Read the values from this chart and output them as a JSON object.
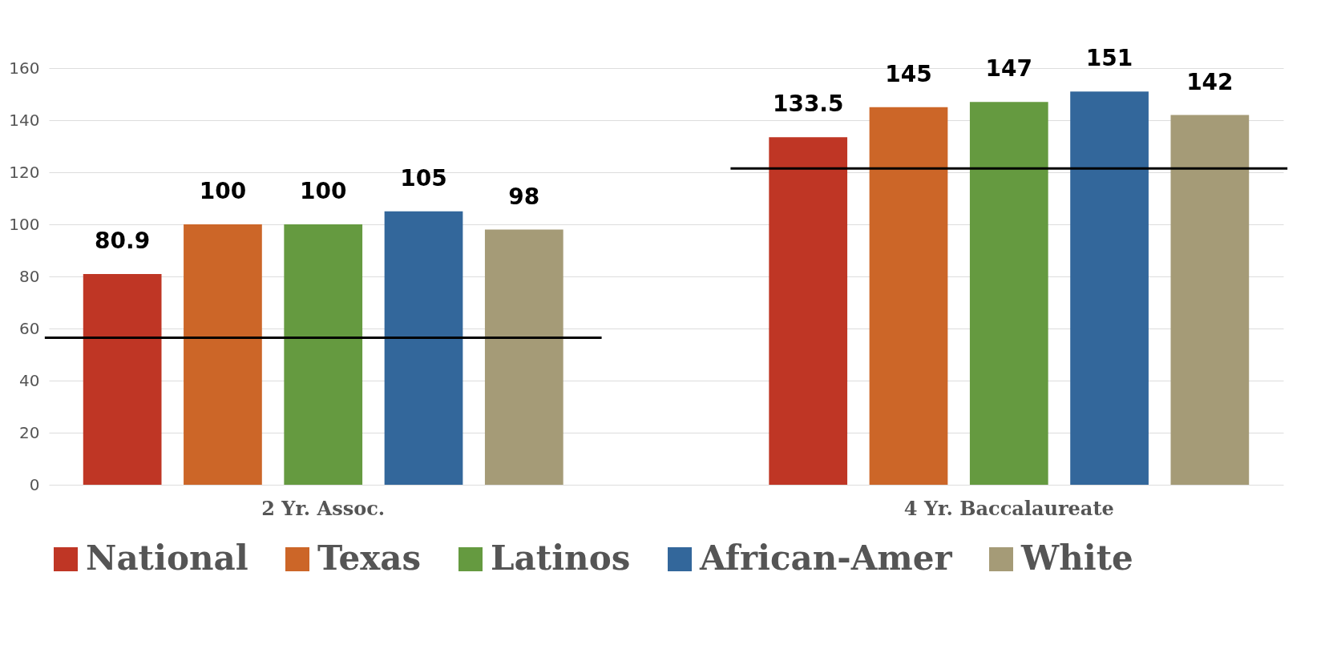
{
  "chart_data": {
    "type": "bar",
    "categories": [
      "2 Yr. Assoc.",
      "4 Yr. Baccalaureate"
    ],
    "series": [
      {
        "name": "National",
        "color": "#bf3625",
        "values": [
          80.9,
          133.5
        ]
      },
      {
        "name": "Texas",
        "color": "#cc6628",
        "values": [
          100,
          145
        ]
      },
      {
        "name": "Latinos",
        "color": "#659a40",
        "values": [
          100,
          147
        ]
      },
      {
        "name": "African-Amer",
        "color": "#33679b",
        "values": [
          105,
          151
        ]
      },
      {
        "name": "White",
        "color": "#a59b77",
        "values": [
          98,
          142
        ]
      }
    ],
    "ylim": [
      0,
      160
    ],
    "yticks": [
      0,
      20,
      40,
      60,
      80,
      100,
      120,
      140,
      160
    ],
    "grid": "y",
    "legend": "bottom",
    "data_labels": true,
    "ref_lines": [
      {
        "axis": "y",
        "value": 56.5,
        "color": "#000000"
      },
      {
        "axis": "y",
        "value": 121.5,
        "color": "#000000"
      }
    ]
  }
}
